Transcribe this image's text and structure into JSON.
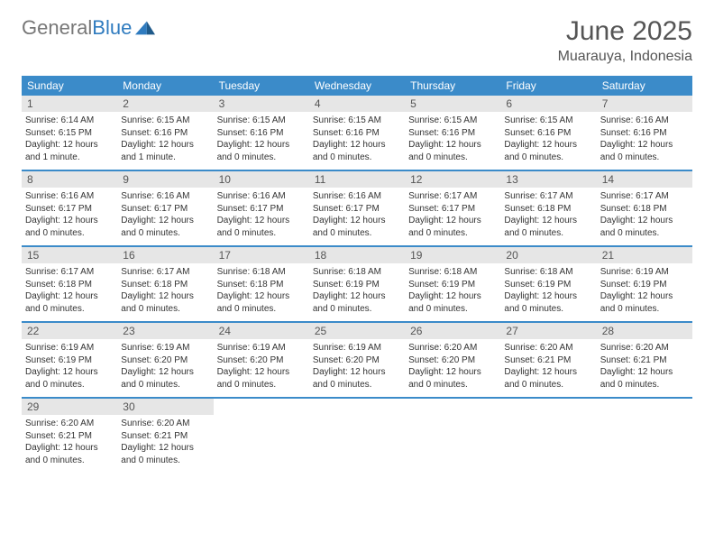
{
  "brand": {
    "part1": "General",
    "part2": "Blue"
  },
  "title": "June 2025",
  "location": "Muarauya, Indonesia",
  "colors": {
    "header_bg": "#3b8bc9",
    "daynum_bg": "#e6e6e6",
    "text": "#333333",
    "title_text": "#555555",
    "brand_gray": "#777777",
    "brand_blue": "#2f7bbf",
    "page_bg": "#ffffff"
  },
  "weekdays": [
    "Sunday",
    "Monday",
    "Tuesday",
    "Wednesday",
    "Thursday",
    "Friday",
    "Saturday"
  ],
  "weeks": [
    [
      {
        "n": "1",
        "sunrise": "Sunrise: 6:14 AM",
        "sunset": "Sunset: 6:15 PM",
        "daylight": "Daylight: 12 hours and 1 minute."
      },
      {
        "n": "2",
        "sunrise": "Sunrise: 6:15 AM",
        "sunset": "Sunset: 6:16 PM",
        "daylight": "Daylight: 12 hours and 1 minute."
      },
      {
        "n": "3",
        "sunrise": "Sunrise: 6:15 AM",
        "sunset": "Sunset: 6:16 PM",
        "daylight": "Daylight: 12 hours and 0 minutes."
      },
      {
        "n": "4",
        "sunrise": "Sunrise: 6:15 AM",
        "sunset": "Sunset: 6:16 PM",
        "daylight": "Daylight: 12 hours and 0 minutes."
      },
      {
        "n": "5",
        "sunrise": "Sunrise: 6:15 AM",
        "sunset": "Sunset: 6:16 PM",
        "daylight": "Daylight: 12 hours and 0 minutes."
      },
      {
        "n": "6",
        "sunrise": "Sunrise: 6:15 AM",
        "sunset": "Sunset: 6:16 PM",
        "daylight": "Daylight: 12 hours and 0 minutes."
      },
      {
        "n": "7",
        "sunrise": "Sunrise: 6:16 AM",
        "sunset": "Sunset: 6:16 PM",
        "daylight": "Daylight: 12 hours and 0 minutes."
      }
    ],
    [
      {
        "n": "8",
        "sunrise": "Sunrise: 6:16 AM",
        "sunset": "Sunset: 6:17 PM",
        "daylight": "Daylight: 12 hours and 0 minutes."
      },
      {
        "n": "9",
        "sunrise": "Sunrise: 6:16 AM",
        "sunset": "Sunset: 6:17 PM",
        "daylight": "Daylight: 12 hours and 0 minutes."
      },
      {
        "n": "10",
        "sunrise": "Sunrise: 6:16 AM",
        "sunset": "Sunset: 6:17 PM",
        "daylight": "Daylight: 12 hours and 0 minutes."
      },
      {
        "n": "11",
        "sunrise": "Sunrise: 6:16 AM",
        "sunset": "Sunset: 6:17 PM",
        "daylight": "Daylight: 12 hours and 0 minutes."
      },
      {
        "n": "12",
        "sunrise": "Sunrise: 6:17 AM",
        "sunset": "Sunset: 6:17 PM",
        "daylight": "Daylight: 12 hours and 0 minutes."
      },
      {
        "n": "13",
        "sunrise": "Sunrise: 6:17 AM",
        "sunset": "Sunset: 6:18 PM",
        "daylight": "Daylight: 12 hours and 0 minutes."
      },
      {
        "n": "14",
        "sunrise": "Sunrise: 6:17 AM",
        "sunset": "Sunset: 6:18 PM",
        "daylight": "Daylight: 12 hours and 0 minutes."
      }
    ],
    [
      {
        "n": "15",
        "sunrise": "Sunrise: 6:17 AM",
        "sunset": "Sunset: 6:18 PM",
        "daylight": "Daylight: 12 hours and 0 minutes."
      },
      {
        "n": "16",
        "sunrise": "Sunrise: 6:17 AM",
        "sunset": "Sunset: 6:18 PM",
        "daylight": "Daylight: 12 hours and 0 minutes."
      },
      {
        "n": "17",
        "sunrise": "Sunrise: 6:18 AM",
        "sunset": "Sunset: 6:18 PM",
        "daylight": "Daylight: 12 hours and 0 minutes."
      },
      {
        "n": "18",
        "sunrise": "Sunrise: 6:18 AM",
        "sunset": "Sunset: 6:19 PM",
        "daylight": "Daylight: 12 hours and 0 minutes."
      },
      {
        "n": "19",
        "sunrise": "Sunrise: 6:18 AM",
        "sunset": "Sunset: 6:19 PM",
        "daylight": "Daylight: 12 hours and 0 minutes."
      },
      {
        "n": "20",
        "sunrise": "Sunrise: 6:18 AM",
        "sunset": "Sunset: 6:19 PM",
        "daylight": "Daylight: 12 hours and 0 minutes."
      },
      {
        "n": "21",
        "sunrise": "Sunrise: 6:19 AM",
        "sunset": "Sunset: 6:19 PM",
        "daylight": "Daylight: 12 hours and 0 minutes."
      }
    ],
    [
      {
        "n": "22",
        "sunrise": "Sunrise: 6:19 AM",
        "sunset": "Sunset: 6:19 PM",
        "daylight": "Daylight: 12 hours and 0 minutes."
      },
      {
        "n": "23",
        "sunrise": "Sunrise: 6:19 AM",
        "sunset": "Sunset: 6:20 PM",
        "daylight": "Daylight: 12 hours and 0 minutes."
      },
      {
        "n": "24",
        "sunrise": "Sunrise: 6:19 AM",
        "sunset": "Sunset: 6:20 PM",
        "daylight": "Daylight: 12 hours and 0 minutes."
      },
      {
        "n": "25",
        "sunrise": "Sunrise: 6:19 AM",
        "sunset": "Sunset: 6:20 PM",
        "daylight": "Daylight: 12 hours and 0 minutes."
      },
      {
        "n": "26",
        "sunrise": "Sunrise: 6:20 AM",
        "sunset": "Sunset: 6:20 PM",
        "daylight": "Daylight: 12 hours and 0 minutes."
      },
      {
        "n": "27",
        "sunrise": "Sunrise: 6:20 AM",
        "sunset": "Sunset: 6:21 PM",
        "daylight": "Daylight: 12 hours and 0 minutes."
      },
      {
        "n": "28",
        "sunrise": "Sunrise: 6:20 AM",
        "sunset": "Sunset: 6:21 PM",
        "daylight": "Daylight: 12 hours and 0 minutes."
      }
    ],
    [
      {
        "n": "29",
        "sunrise": "Sunrise: 6:20 AM",
        "sunset": "Sunset: 6:21 PM",
        "daylight": "Daylight: 12 hours and 0 minutes."
      },
      {
        "n": "30",
        "sunrise": "Sunrise: 6:20 AM",
        "sunset": "Sunset: 6:21 PM",
        "daylight": "Daylight: 12 hours and 0 minutes."
      },
      {
        "empty": true
      },
      {
        "empty": true
      },
      {
        "empty": true
      },
      {
        "empty": true
      },
      {
        "empty": true
      }
    ]
  ]
}
